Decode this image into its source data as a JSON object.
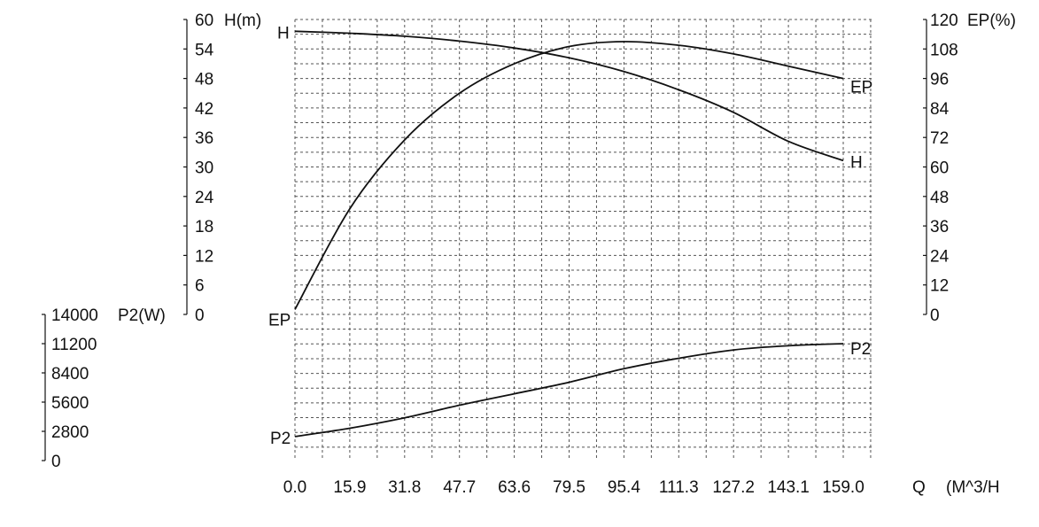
{
  "chart_data": {
    "type": "line",
    "x_axis": {
      "ticks": [
        "0.0",
        "15.9",
        "31.8",
        "47.7",
        "63.6",
        "79.5",
        "95.4",
        "111.3",
        "127.2",
        "143.1",
        "159.0"
      ],
      "label": "Q",
      "unit": "(M^3/H",
      "range": [
        0,
        159
      ]
    },
    "axes": {
      "head": {
        "unit_label": "H(m)",
        "ticks": [
          "60",
          "54",
          "48",
          "42",
          "36",
          "30",
          "24",
          "18",
          "12",
          "6",
          "0"
        ],
        "range": [
          0,
          60
        ]
      },
      "efficiency": {
        "unit_label": "EP(%)",
        "ticks": [
          "120",
          "108",
          "96",
          "84",
          "72",
          "60",
          "48",
          "36",
          "24",
          "12",
          "0"
        ],
        "range": [
          0,
          120
        ]
      },
      "power": {
        "unit_label": "P2(W)",
        "ticks": [
          "14000",
          "11200",
          "8400",
          "5600",
          "2800",
          "0"
        ],
        "range": [
          0,
          14000
        ]
      }
    },
    "grid": true,
    "series": [
      {
        "name": "H",
        "axis": "head",
        "color": "#111111",
        "start_label": "H",
        "end_label": "H",
        "points": [
          [
            0,
            57.6
          ],
          [
            15.9,
            57.2
          ],
          [
            31.8,
            56.6
          ],
          [
            47.7,
            55.6
          ],
          [
            63.6,
            54.2
          ],
          [
            79.5,
            52.2
          ],
          [
            95.4,
            49.4
          ],
          [
            111.3,
            45.7
          ],
          [
            127.2,
            41.1
          ],
          [
            143.1,
            35.2
          ],
          [
            159.0,
            31.3
          ]
        ]
      },
      {
        "name": "EP",
        "axis": "efficiency",
        "color": "#111111",
        "start_label": "EP",
        "end_label": "EP",
        "points": [
          [
            0,
            2
          ],
          [
            15.9,
            43
          ],
          [
            31.8,
            71
          ],
          [
            47.7,
            90
          ],
          [
            63.6,
            102
          ],
          [
            79.5,
            109
          ],
          [
            95.4,
            111
          ],
          [
            111.3,
            109.5
          ],
          [
            127.2,
            106
          ],
          [
            143.1,
            101
          ],
          [
            159.0,
            96
          ]
        ]
      },
      {
        "name": "P2",
        "axis": "power",
        "color": "#111111",
        "start_label": "P2",
        "end_label": "P2",
        "points": [
          [
            0,
            2300
          ],
          [
            15.9,
            3100
          ],
          [
            31.8,
            4100
          ],
          [
            47.7,
            5300
          ],
          [
            63.6,
            6400
          ],
          [
            79.5,
            7500
          ],
          [
            95.4,
            8800
          ],
          [
            111.3,
            9800
          ],
          [
            127.2,
            10600
          ],
          [
            143.1,
            11000
          ],
          [
            159.0,
            11200
          ]
        ]
      }
    ]
  }
}
